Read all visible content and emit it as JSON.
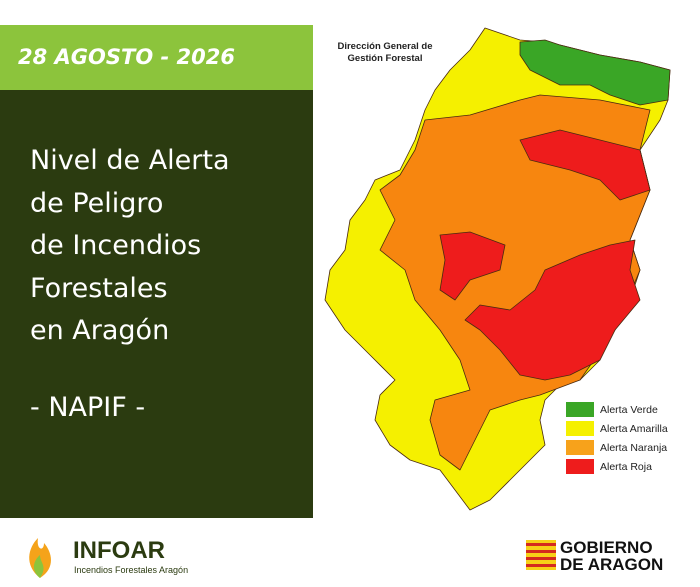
{
  "header": {
    "date": "28 AGOSTO - 2026",
    "title_lines": [
      "Nivel de Alerta",
      "de Peligro",
      "de Incendios",
      "Forestales",
      "en Aragón"
    ],
    "subtitle": "- NAPIF -"
  },
  "map": {
    "source_lines": [
      "Dirección General de",
      "Gestión Forestal"
    ],
    "legend": [
      {
        "label": "Alerta Verde",
        "color": "#3aa626"
      },
      {
        "label": "Alerta Amarilla",
        "color": "#f5f000"
      },
      {
        "label": "Alerta Naranja",
        "color": "#f7a21b"
      },
      {
        "label": "Alerta Roja",
        "color": "#ee1c1c"
      }
    ]
  },
  "footer": {
    "infoar": "INFOAR",
    "infoar_tagline": "Incendios Forestales Aragón",
    "gobierno_lines": [
      "GOBIERNO",
      "DE ARAGON"
    ]
  }
}
